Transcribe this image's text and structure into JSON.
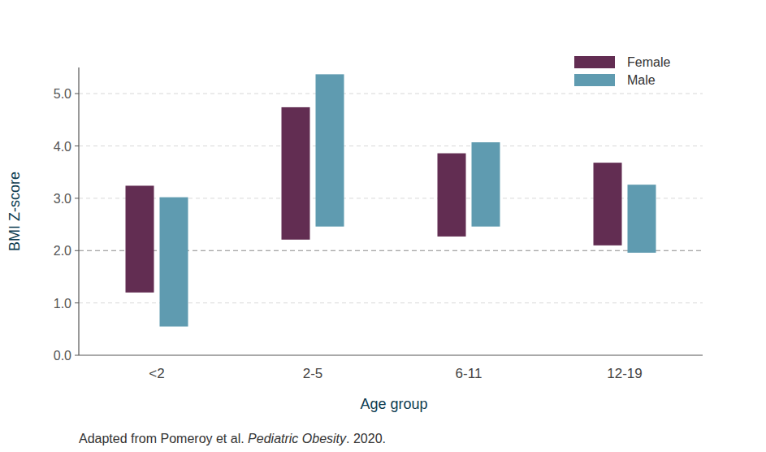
{
  "chart_data": {
    "type": "range",
    "x_label": "Age group",
    "y_label": "BMI Z-score",
    "categories": [
      "<2",
      "2-5",
      "6-11",
      "12-19"
    ],
    "series": [
      {
        "name": "Female",
        "color": "#622d52",
        "low": [
          1.2,
          2.21,
          2.27,
          2.1
        ],
        "high": [
          3.24,
          4.74,
          3.86,
          3.68
        ]
      },
      {
        "name": "Male",
        "color": "#5f9bb0",
        "low": [
          0.55,
          2.46,
          2.46,
          1.96
        ],
        "high": [
          3.02,
          5.37,
          4.07,
          3.26
        ]
      }
    ],
    "ylim": [
      0,
      5.5
    ],
    "yticks": [
      {
        "value": 0,
        "label": "0.0"
      },
      {
        "value": 1,
        "label": "1.0"
      },
      {
        "value": 2,
        "label": "2.0"
      },
      {
        "value": 3,
        "label": "3.0"
      },
      {
        "value": 4,
        "label": "4.0"
      },
      {
        "value": 5,
        "label": "5.0"
      }
    ],
    "reference_line": 2,
    "grid": true,
    "legend": "upper right",
    "source": [
      "Adapted from Pomeroy et al. ",
      "Pediatric Obesity",
      ". 2020."
    ]
  }
}
